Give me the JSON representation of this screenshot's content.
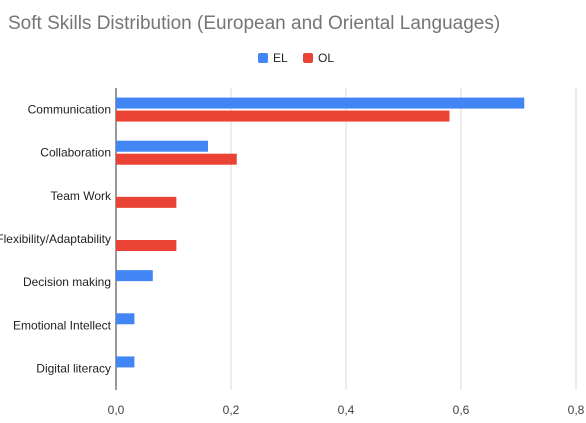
{
  "chart_data": {
    "type": "bar",
    "orientation": "horizontal",
    "title": "Soft Skills Distribution (European and Oriental Languages)",
    "categories": [
      "Communication",
      "Collaboration",
      "Team Work",
      "Flexibility/Adaptability",
      "Decision making",
      "Emotional Intellect",
      "Digital literacy"
    ],
    "series": [
      {
        "name": "EL",
        "color": "#4285f4",
        "values": [
          0.71,
          0.16,
          0.0,
          0.0,
          0.064,
          0.032,
          0.032
        ]
      },
      {
        "name": "OL",
        "color": "#ea4335",
        "values": [
          0.58,
          0.21,
          0.105,
          0.105,
          0.0,
          0.0,
          0.0
        ]
      }
    ],
    "xlim": [
      0,
      0.8
    ],
    "xticks": [
      "0,0",
      "0,2",
      "0,4",
      "0,6",
      "0,8"
    ],
    "xlabel": "",
    "ylabel": "",
    "grid": true,
    "legend_position": "top"
  }
}
